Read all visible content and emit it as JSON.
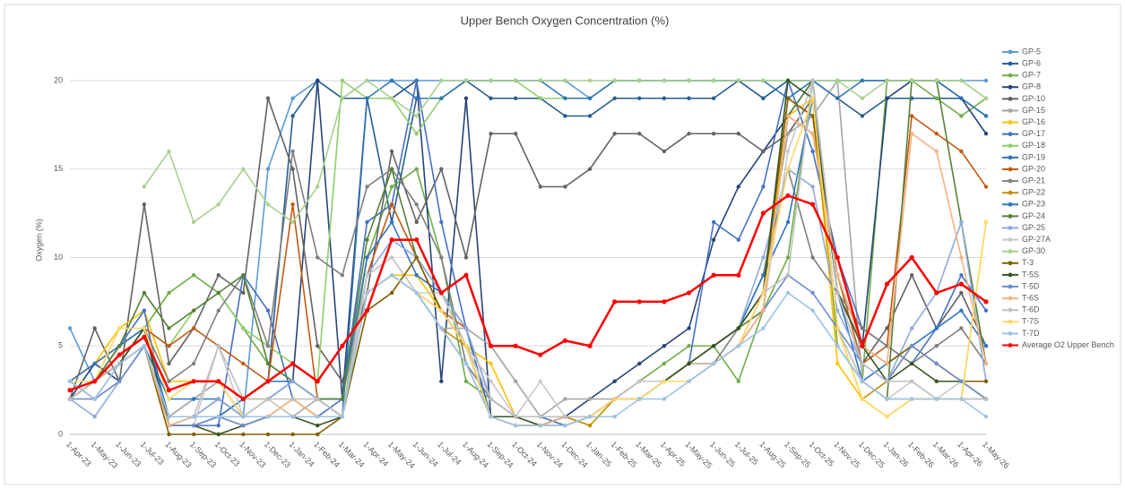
{
  "chart_data": {
    "type": "line",
    "title": "Upper Bench Oxygen Concentration (%)",
    "y_label": "Oxygen (%)",
    "categories": [
      "1-Apr-23",
      "1-May-23",
      "1-Jun-23",
      "1-Jul-23",
      "1-Aug-23",
      "1-Sep-23",
      "1-Oct-23",
      "1-Nov-23",
      "1-Dec-23",
      "1-Jan-24",
      "1-Feb-24",
      "1-Mar-24",
      "1-Apr-24",
      "1-May-24",
      "1-Jun-24",
      "1-Jul-24",
      "1-Aug-24",
      "1-Sep-24",
      "1-Oct-24",
      "1-Nov-24",
      "1-Dec-24",
      "1-Jan-25",
      "1-Feb-25",
      "1-Mar-25",
      "1-Apr-25",
      "1-May-25",
      "1-Jun-25",
      "1-Jul-25",
      "1-Aug-25",
      "1-Sep-25",
      "1-Oct-25",
      "1-Nov-25",
      "1-Dec-25",
      "1-Jan-26",
      "1-Feb-26",
      "1-Mar-26",
      "1-Apr-26",
      "1-May-26"
    ],
    "ylim": [
      0,
      22
    ],
    "yticks": [
      0,
      5,
      10,
      15,
      20
    ],
    "grid": true,
    "legend": "right",
    "series": [
      {
        "name": "GP-5",
        "color": "#5b9bd5",
        "values": [
          6,
          3,
          4,
          5,
          1,
          2,
          3,
          1,
          15,
          19,
          20,
          19,
          20,
          20,
          20,
          20,
          20,
          20,
          20,
          20,
          20,
          19,
          20,
          20,
          20,
          20,
          20,
          20,
          19,
          20,
          20,
          20,
          20,
          20,
          20,
          20,
          20,
          20
        ]
      },
      {
        "name": "GP-6",
        "color": "#255e91",
        "values": [
          3,
          2,
          3,
          5,
          0.5,
          0.5,
          1,
          2,
          3,
          18,
          20,
          19,
          19,
          12,
          19,
          19,
          20,
          19,
          19,
          19,
          18,
          18,
          19,
          19,
          19,
          19,
          19,
          20,
          19,
          20,
          20,
          19,
          18,
          19,
          19,
          19,
          19,
          18
        ]
      },
      {
        "name": "GP-7",
        "color": "#70ad47",
        "values": [
          2,
          3,
          5,
          6,
          8,
          9,
          8,
          6,
          4,
          3,
          2,
          1,
          10,
          14,
          15,
          10,
          3,
          2,
          1,
          1,
          1,
          1,
          2,
          3,
          4,
          5,
          5,
          3,
          7,
          10,
          20,
          5,
          3,
          20,
          20,
          19,
          18,
          19
        ]
      },
      {
        "name": "GP-8",
        "color": "#264478",
        "values": [
          2,
          4,
          3,
          5,
          1,
          1,
          2,
          1,
          2,
          3,
          20,
          2,
          19,
          19,
          20,
          3,
          19,
          1,
          1,
          1,
          1,
          2,
          3,
          4,
          5,
          6,
          11,
          14,
          16,
          18,
          20,
          8,
          5,
          19,
          20,
          20,
          19,
          17
        ]
      },
      {
        "name": "GP-10",
        "color": "#636363",
        "values": [
          2,
          6,
          3,
          13,
          4,
          6,
          9,
          8,
          19,
          15,
          5,
          3,
          8,
          16,
          12,
          15,
          10,
          17,
          17,
          14,
          14,
          15,
          17,
          17,
          16,
          17,
          17,
          17,
          16,
          17,
          19,
          8,
          4,
          6,
          9,
          6,
          8,
          5
        ]
      },
      {
        "name": "GP-15",
        "color": "#a5a5a5",
        "values": [
          3,
          2,
          4,
          5,
          1,
          2,
          3,
          2,
          2,
          1,
          2,
          2,
          9,
          10,
          8,
          6,
          6,
          5,
          3,
          1,
          2,
          2,
          2,
          3,
          3,
          4,
          5,
          6,
          9,
          17,
          18,
          20,
          3,
          2,
          2,
          2,
          2,
          2
        ]
      },
      {
        "name": "GP-16",
        "color": "#ffc000",
        "values": [
          3,
          4,
          6,
          7,
          3,
          3,
          3,
          2,
          2,
          1,
          1,
          1,
          8,
          9,
          9,
          7,
          5,
          4,
          1,
          1,
          1,
          0.5,
          2,
          2,
          3,
          3,
          4,
          5,
          8,
          18,
          19,
          4,
          2,
          1,
          2,
          2,
          2,
          12
        ]
      },
      {
        "name": "GP-17",
        "color": "#4472c4",
        "values": [
          3,
          3,
          5,
          7,
          0.5,
          0.5,
          0.5,
          9,
          7,
          2,
          1,
          2,
          12,
          13,
          20,
          12,
          6,
          2,
          1,
          1,
          0.5,
          1,
          2,
          3,
          3,
          4,
          12,
          11,
          14,
          20,
          16,
          10,
          6,
          5,
          4,
          6,
          9,
          7
        ]
      },
      {
        "name": "GP-18",
        "color": "#8fce6a",
        "values": [
          2,
          3,
          4,
          6,
          5,
          7,
          8,
          6,
          5,
          4,
          3,
          20,
          19,
          19,
          17,
          19,
          20,
          20,
          20,
          19,
          19,
          19,
          20,
          20,
          20,
          20,
          20,
          20,
          20,
          20,
          20,
          20,
          20,
          20,
          20,
          20,
          20,
          19
        ]
      },
      {
        "name": "GP-19",
        "color": "#2e75b6",
        "values": [
          2,
          3,
          4,
          5,
          2,
          2,
          2,
          1,
          2,
          3,
          2,
          1,
          19,
          20,
          19,
          19,
          20,
          20,
          20,
          20,
          19,
          19,
          20,
          20,
          20,
          20,
          20,
          20,
          20,
          19,
          20,
          19,
          20,
          20,
          20,
          20,
          19,
          18
        ]
      },
      {
        "name": "GP-20",
        "color": "#c55a11",
        "values": [
          2,
          3,
          4,
          6,
          5,
          6,
          5,
          4,
          3,
          13,
          2,
          1,
          9,
          13,
          10,
          7,
          6,
          1,
          0.5,
          0.5,
          0.5,
          1,
          2,
          3,
          3,
          4,
          4,
          5,
          7,
          18,
          17,
          9,
          4,
          5,
          18,
          17,
          16,
          14
        ]
      },
      {
        "name": "GP-21",
        "color": "#7f7f7f",
        "values": [
          2,
          3,
          4,
          6,
          3,
          4,
          7,
          9,
          5,
          16,
          10,
          9,
          14,
          15,
          13,
          10,
          4,
          2,
          1,
          1,
          1,
          1,
          2,
          3,
          3,
          3,
          4,
          6,
          9,
          15,
          10,
          8,
          6,
          5,
          4,
          5,
          6,
          4
        ]
      },
      {
        "name": "GP-22",
        "color": "#bf9000",
        "values": [
          3,
          4,
          5,
          6,
          0.5,
          0.5,
          1,
          0.5,
          1,
          2,
          1,
          1,
          8,
          9,
          8,
          6,
          5,
          1,
          1,
          0.5,
          1,
          0.5,
          2,
          2,
          3,
          4,
          4,
          5,
          8,
          19,
          18,
          6,
          2,
          3,
          5,
          4,
          3,
          2
        ]
      },
      {
        "name": "GP-23",
        "color": "#2f75c4",
        "values": [
          3,
          4,
          5,
          6,
          1,
          1,
          1,
          2,
          3,
          3,
          2,
          2,
          10,
          12,
          9,
          8,
          6,
          1,
          0.5,
          0.5,
          0.5,
          1,
          2,
          3,
          3,
          4,
          5,
          6,
          9,
          12,
          19,
          8,
          3,
          4,
          5,
          6,
          7,
          5
        ]
      },
      {
        "name": "GP-24",
        "color": "#548235",
        "values": [
          2,
          3,
          5,
          8,
          6,
          7,
          8,
          9,
          4,
          3,
          2,
          2,
          11,
          15,
          10,
          8,
          5,
          1,
          1,
          1,
          1,
          1,
          2,
          3,
          3,
          4,
          5,
          6,
          7,
          18,
          20,
          6,
          3,
          2,
          20,
          20,
          12,
          4
        ]
      },
      {
        "name": "GP-25",
        "color": "#8faadc",
        "values": [
          2,
          1,
          3,
          5,
          0.5,
          1,
          2,
          1,
          2,
          3,
          2,
          1,
          9,
          11,
          10,
          8,
          6,
          2,
          1,
          1,
          1,
          1,
          2,
          3,
          3,
          4,
          5,
          6,
          10,
          15,
          14,
          7,
          4,
          3,
          6,
          8,
          12,
          3
        ]
      },
      {
        "name": "GP-27A",
        "color": "#c9c9c9",
        "values": [
          2,
          2,
          3,
          5,
          0.5,
          0.5,
          5,
          1,
          2,
          1,
          1,
          1,
          9,
          10,
          8,
          8,
          5,
          3,
          1,
          3,
          1,
          1,
          2,
          3,
          3,
          4,
          4,
          5,
          7,
          16,
          20,
          6,
          3,
          2,
          3,
          2,
          3,
          2
        ]
      },
      {
        "name": "GP-30",
        "color": "#a9d18e",
        "values": [
          null,
          null,
          null,
          14,
          16,
          12,
          13,
          15,
          13,
          12,
          14,
          19,
          20,
          19,
          18,
          20,
          20,
          20,
          20,
          20,
          20,
          20,
          20,
          20,
          20,
          20,
          20,
          20,
          20,
          20,
          20,
          20,
          19,
          20,
          20,
          20,
          20,
          19
        ]
      },
      {
        "name": "T-3",
        "color": "#7f6000",
        "values": [
          2,
          3,
          4,
          5,
          0,
          0,
          0,
          0,
          0,
          0,
          0,
          1,
          7,
          8,
          10,
          7,
          5,
          1,
          0.5,
          0.5,
          1,
          1,
          2,
          2,
          3,
          4,
          5,
          6,
          8,
          19,
          18,
          9,
          5,
          4,
          5,
          4,
          3,
          3
        ]
      },
      {
        "name": "T-5S",
        "color": "#375623",
        "values": [
          2,
          3,
          4,
          6,
          0.5,
          0.5,
          0,
          0.5,
          1,
          1,
          0.5,
          1,
          8,
          9,
          8,
          7,
          5,
          1,
          1,
          0.5,
          1,
          1,
          2,
          2,
          3,
          4,
          5,
          6,
          8,
          20,
          19,
          8,
          5,
          3,
          4,
          3,
          3,
          2
        ]
      },
      {
        "name": "T-5D",
        "color": "#6f8fcf",
        "values": [
          2,
          2,
          3,
          5,
          0.5,
          0.5,
          1,
          0.5,
          1,
          1,
          1,
          1,
          8,
          9,
          8,
          6,
          4,
          1,
          0.5,
          0.5,
          0.5,
          1,
          2,
          2,
          3,
          3,
          4,
          5,
          7,
          9,
          8,
          6,
          4,
          3,
          5,
          4,
          3,
          2
        ]
      },
      {
        "name": "T-6S",
        "color": "#f4b183",
        "values": [
          2,
          3,
          4,
          5,
          0.5,
          1,
          1,
          1,
          1,
          2,
          1,
          1,
          8,
          9,
          8,
          6,
          4,
          1,
          0.5,
          0.5,
          1,
          1,
          2,
          2,
          3,
          3,
          4,
          5,
          7,
          18,
          17,
          9,
          5,
          4,
          17,
          16,
          10,
          4
        ]
      },
      {
        "name": "T-6D",
        "color": "#bfbfbf",
        "values": [
          2,
          3,
          4,
          5,
          1,
          1,
          5,
          2,
          2,
          2,
          2,
          1,
          8,
          9,
          8,
          7,
          5,
          2,
          1,
          1,
          1,
          1,
          2,
          2,
          3,
          3,
          4,
          5,
          8,
          9,
          20,
          8,
          4,
          3,
          3,
          2,
          2,
          2
        ]
      },
      {
        "name": "T-7S",
        "color": "#ffd966",
        "values": [
          3,
          3,
          6,
          6,
          2,
          3,
          3,
          1,
          1,
          1,
          1,
          1,
          8,
          9,
          8,
          7,
          5,
          1,
          0.5,
          0.5,
          0.5,
          1,
          2,
          2,
          3,
          3,
          4,
          5,
          8,
          15,
          19,
          6,
          2,
          1,
          2,
          2,
          2,
          12
        ]
      },
      {
        "name": "T-7D",
        "color": "#9dc3e6",
        "values": [
          3,
          2,
          4,
          5,
          1,
          1,
          1,
          1,
          1,
          1,
          1,
          1,
          8,
          9,
          8,
          6,
          4,
          1,
          0.5,
          0.5,
          0.5,
          1,
          1,
          2,
          2,
          3,
          4,
          5,
          6,
          8,
          7,
          5,
          3,
          2,
          2,
          2,
          2,
          1
        ]
      },
      {
        "name": "Average O2 Upper Bench",
        "color": "#ff0000",
        "values": [
          2.5,
          3,
          4.5,
          5.5,
          2.5,
          3,
          3,
          2,
          3,
          4,
          3,
          5,
          7,
          11,
          11,
          8,
          9,
          5,
          5,
          4.5,
          5.3,
          5,
          7.5,
          7.5,
          7.5,
          8,
          9,
          9,
          12.5,
          13.5,
          13,
          10,
          5,
          8.5,
          10,
          8,
          8.5,
          7.5
        ]
      }
    ]
  }
}
